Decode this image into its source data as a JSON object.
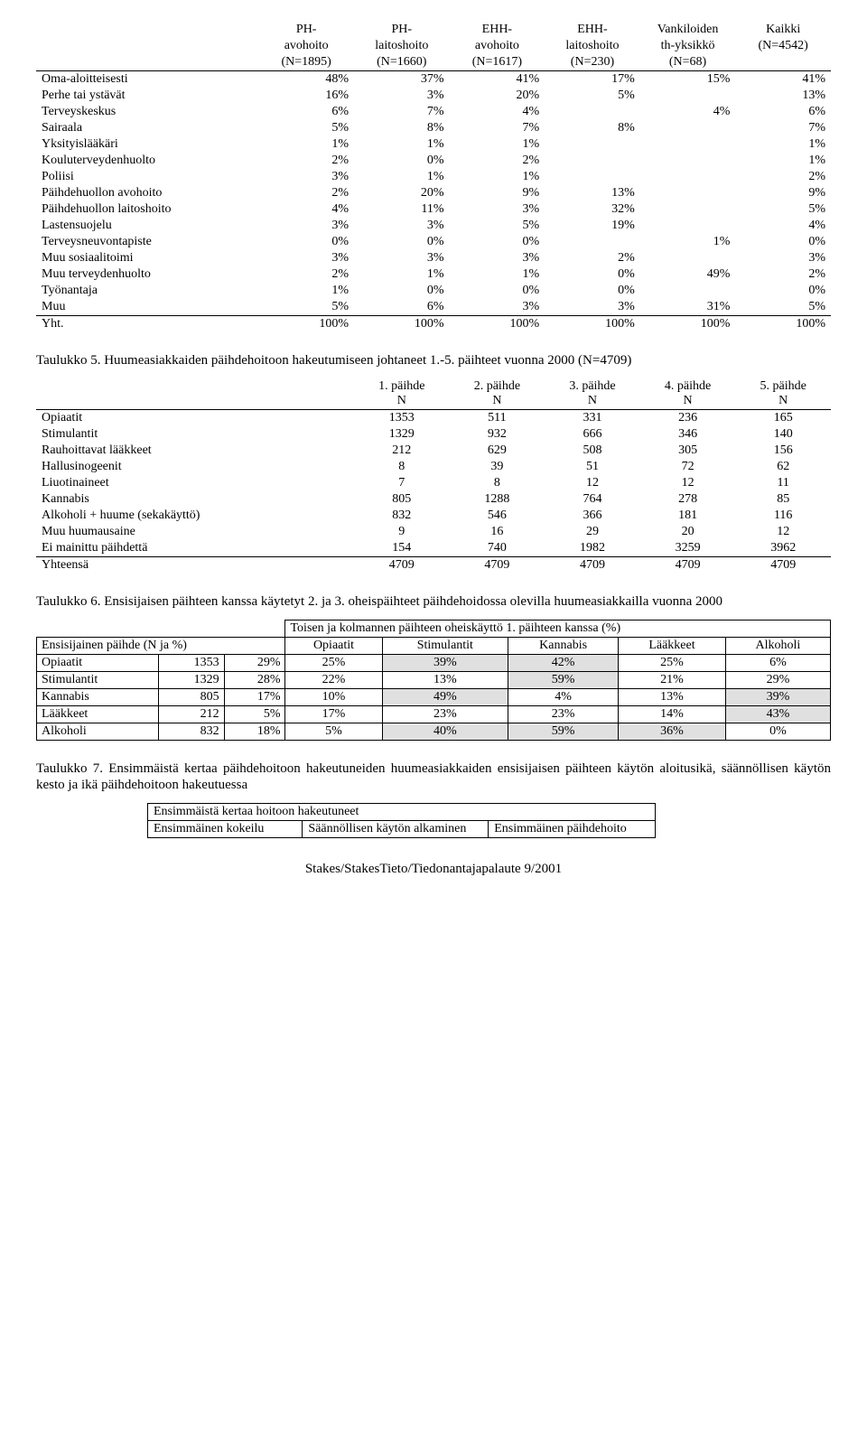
{
  "t4": {
    "cols": [
      {
        "l1": "",
        "l2": ""
      },
      {
        "l1": "PH-",
        "l2": "avohoito",
        "l3": "(N=1895)"
      },
      {
        "l1": "PH-",
        "l2": "laitoshoito",
        "l3": "(N=1660)"
      },
      {
        "l1": "EHH-",
        "l2": "avohoito",
        "l3": "(N=1617)"
      },
      {
        "l1": "EHH-",
        "l2": "laitoshoito",
        "l3": "(N=230)"
      },
      {
        "l1": "Vankiloiden",
        "l2": "th-yksikkö",
        "l3": "(N=68)"
      },
      {
        "l1": "Kaikki",
        "l2": "(N=4542)",
        "l3": ""
      }
    ],
    "rows": [
      [
        "Oma-aloitteisesti",
        "48%",
        "37%",
        "41%",
        "17%",
        "15%",
        "41%"
      ],
      [
        "Perhe tai ystävät",
        "16%",
        "3%",
        "20%",
        "5%",
        "",
        "13%"
      ],
      [
        "Terveyskeskus",
        "6%",
        "7%",
        "4%",
        "",
        "4%",
        "6%"
      ],
      [
        "Sairaala",
        "5%",
        "8%",
        "7%",
        "8%",
        "",
        "7%"
      ],
      [
        "Yksityislääkäri",
        "1%",
        "1%",
        "1%",
        "",
        "",
        "1%"
      ],
      [
        "Kouluterveydenhuolto",
        "2%",
        "0%",
        "2%",
        "",
        "",
        "1%"
      ],
      [
        "Poliisi",
        "3%",
        "1%",
        "1%",
        "",
        "",
        "2%"
      ],
      [
        "Päihdehuollon avohoito",
        "2%",
        "20%",
        "9%",
        "13%",
        "",
        "9%"
      ],
      [
        "Päihdehuollon laitoshoito",
        "4%",
        "11%",
        "3%",
        "32%",
        "",
        "5%"
      ],
      [
        "Lastensuojelu",
        "3%",
        "3%",
        "5%",
        "19%",
        "",
        "4%"
      ],
      [
        "Terveysneuvontapiste",
        "0%",
        "0%",
        "0%",
        "",
        "1%",
        "0%"
      ],
      [
        "Muu sosiaalitoimi",
        "3%",
        "3%",
        "3%",
        "2%",
        "",
        "3%"
      ],
      [
        "Muu terveydenhuolto",
        "2%",
        "1%",
        "1%",
        "0%",
        "49%",
        "2%"
      ],
      [
        "Työnantaja",
        "1%",
        "0%",
        "0%",
        "0%",
        "",
        "0%"
      ],
      [
        "Muu",
        "5%",
        "6%",
        "3%",
        "3%",
        "31%",
        "5%"
      ],
      [
        "Yht.",
        "100%",
        "100%",
        "100%",
        "100%",
        "100%",
        "100%"
      ]
    ]
  },
  "cap5": "Taulukko 5. Huumeasiakkaiden päihdehoitoon hakeutumiseen johtaneet 1.-5. päihteet vuonna 2000 (N=4709)",
  "t5": {
    "cols": [
      "",
      "1. päihde N",
      "2. päihde N",
      "3. päihde N",
      "4. päihde N",
      "5. päihde N"
    ],
    "rows": [
      [
        "Opiaatit",
        "1353",
        "511",
        "331",
        "236",
        "165"
      ],
      [
        "Stimulantit",
        "1329",
        "932",
        "666",
        "346",
        "140"
      ],
      [
        "Rauhoittavat lääkkeet",
        "212",
        "629",
        "508",
        "305",
        "156"
      ],
      [
        "Hallusinogeenit",
        "8",
        "39",
        "51",
        "72",
        "62"
      ],
      [
        "Liuotinaineet",
        "7",
        "8",
        "12",
        "12",
        "11"
      ],
      [
        "Kannabis",
        "805",
        "1288",
        "764",
        "278",
        "85"
      ],
      [
        "Alkoholi + huume (sekakäyttö)",
        "832",
        "546",
        "366",
        "181",
        "116"
      ],
      [
        "Muu huumausaine",
        "9",
        "16",
        "29",
        "20",
        "12"
      ],
      [
        "Ei mainittu päihdettä",
        "154",
        "740",
        "1982",
        "3259",
        "3962"
      ],
      [
        "Yhteensä",
        "4709",
        "4709",
        "4709",
        "4709",
        "4709"
      ]
    ]
  },
  "cap6": "Taulukko 6. Ensisijaisen päihteen kanssa käytetyt 2. ja 3. oheispäihteet päihdehoidossa olevilla huumeasiakkailla vuonna 2000",
  "t6": {
    "topHeader": "Toisen ja kolmannen päihteen oheiskäyttö 1. päihteen kanssa (%)",
    "leftHeader": "Ensisijainen päihde (N ja %)",
    "cols": [
      "Opiaatit",
      "Stimulantit",
      "Kannabis",
      "Lääkkeet",
      "Alkoholi"
    ],
    "rows": [
      {
        "label": "Opiaatit",
        "n": "1353",
        "pct": "29%",
        "v": [
          "25%",
          "39%",
          "42%",
          "25%",
          "6%"
        ],
        "shade": [
          false,
          true,
          true,
          false,
          false
        ]
      },
      {
        "label": "Stimulantit",
        "n": "1329",
        "pct": "28%",
        "v": [
          "22%",
          "13%",
          "59%",
          "21%",
          "29%"
        ],
        "shade": [
          false,
          false,
          true,
          false,
          false
        ]
      },
      {
        "label": "Kannabis",
        "n": "805",
        "pct": "17%",
        "v": [
          "10%",
          "49%",
          "4%",
          "13%",
          "39%"
        ],
        "shade": [
          false,
          true,
          false,
          false,
          true
        ]
      },
      {
        "label": "Lääkkeet",
        "n": "212",
        "pct": "5%",
        "v": [
          "17%",
          "23%",
          "23%",
          "14%",
          "43%"
        ],
        "shade": [
          false,
          false,
          false,
          false,
          true
        ]
      },
      {
        "label": "Alkoholi",
        "n": "832",
        "pct": "18%",
        "v": [
          "5%",
          "40%",
          "59%",
          "36%",
          "0%"
        ],
        "shade": [
          false,
          true,
          true,
          true,
          false
        ]
      }
    ]
  },
  "cap7": "Taulukko 7. Ensimmäistä kertaa päihdehoitoon hakeutuneiden huumeasiakkaiden ensisijaisen päihteen käytön aloitusikä, säännöllisen käytön kesto ja ikä päihdehoitoon hakeutuessa",
  "t7": {
    "top": "Ensimmäistä kertaa hoitoon hakeutuneet",
    "c1": "Ensimmäinen kokeilu",
    "c2": "Säännöllisen käytön alkaminen",
    "c3": "Ensimmäinen päihdehoito"
  },
  "footer": "Stakes/StakesTieto/Tiedonantajapalaute 9/2001"
}
